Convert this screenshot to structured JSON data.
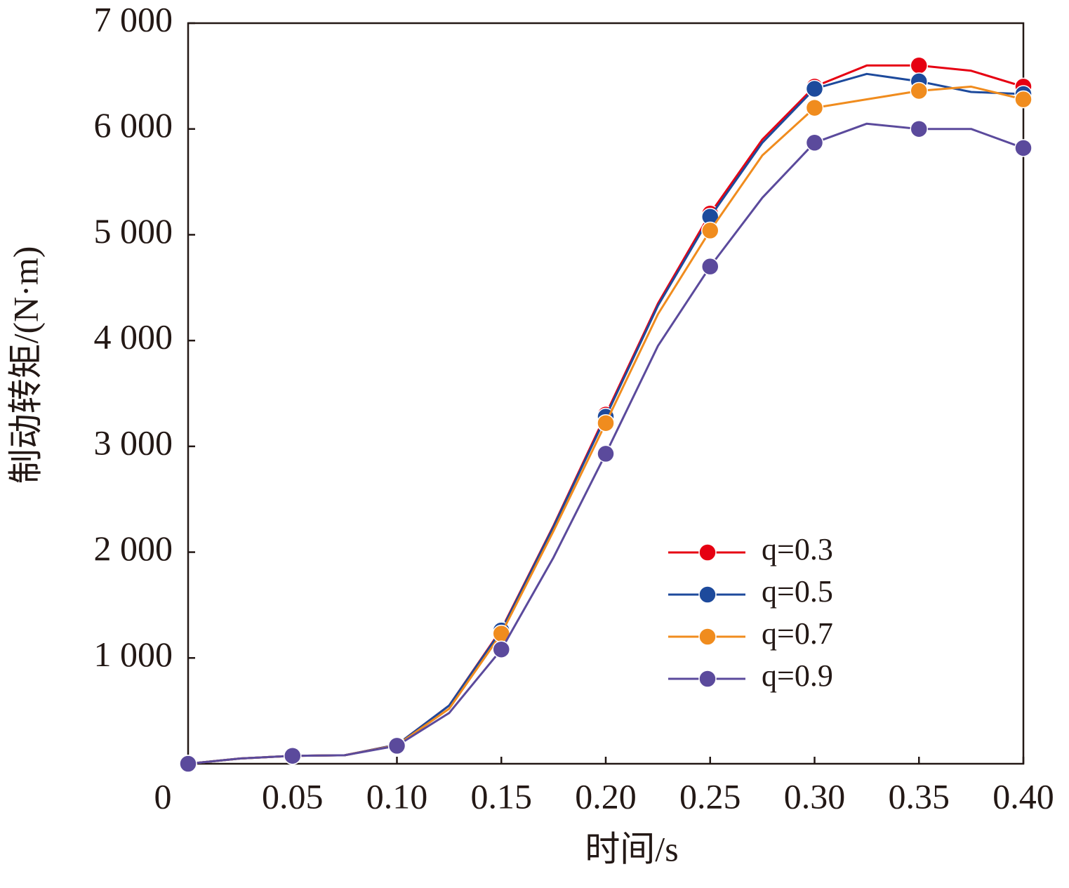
{
  "chart_data": {
    "type": "line",
    "x_label": "时间/s",
    "y_label": "制动转矩/(N·m)",
    "x": [
      0,
      0.025,
      0.05,
      0.075,
      0.1,
      0.125,
      0.15,
      0.175,
      0.2,
      0.225,
      0.25,
      0.275,
      0.3,
      0.325,
      0.35,
      0.375,
      0.4
    ],
    "series": [
      {
        "name": "q=0.3",
        "color": "#e60012",
        "values": [
          0,
          50,
          75,
          80,
          180,
          550,
          1270,
          2250,
          3300,
          4350,
          5200,
          5900,
          6400,
          6600,
          6600,
          6550,
          6400
        ]
      },
      {
        "name": "q=0.5",
        "color": "#1d4a9c",
        "values": [
          0,
          50,
          75,
          80,
          180,
          550,
          1260,
          2240,
          3280,
          4330,
          5170,
          5870,
          6380,
          6520,
          6450,
          6350,
          6330
        ]
      },
      {
        "name": "q=0.7",
        "color": "#f08c1e",
        "values": [
          0,
          50,
          75,
          80,
          175,
          520,
          1230,
          2200,
          3220,
          4250,
          5040,
          5750,
          6200,
          6280,
          6360,
          6400,
          6280
        ]
      },
      {
        "name": "q=0.9",
        "color": "#5b4a9c",
        "values": [
          0,
          50,
          75,
          80,
          170,
          480,
          1080,
          1950,
          2930,
          3950,
          4700,
          5350,
          5870,
          6050,
          6000,
          6000,
          5820
        ]
      }
    ],
    "xlim": [
      0,
      0.4
    ],
    "xticks": [
      0,
      0.05,
      {
        "value": 0.1,
        "label": "0.10"
      },
      0.15,
      {
        "value": 0.2,
        "label": "0.20"
      },
      0.25,
      {
        "value": 0.3,
        "label": "0.30"
      },
      0.35,
      {
        "value": 0.4,
        "label": "0.40"
      }
    ],
    "ylim": [
      0,
      7000
    ],
    "yticks": [
      {
        "value": 1000,
        "label": "1 000"
      },
      {
        "value": 2000,
        "label": "2 000"
      },
      {
        "value": 3000,
        "label": "3 000"
      },
      {
        "value": 4000,
        "label": "4 000"
      },
      {
        "value": 5000,
        "label": "5 000"
      },
      {
        "value": 6000,
        "label": "6 000"
      },
      {
        "value": 7000,
        "label": "7 000"
      }
    ],
    "legend": "lower right"
  }
}
